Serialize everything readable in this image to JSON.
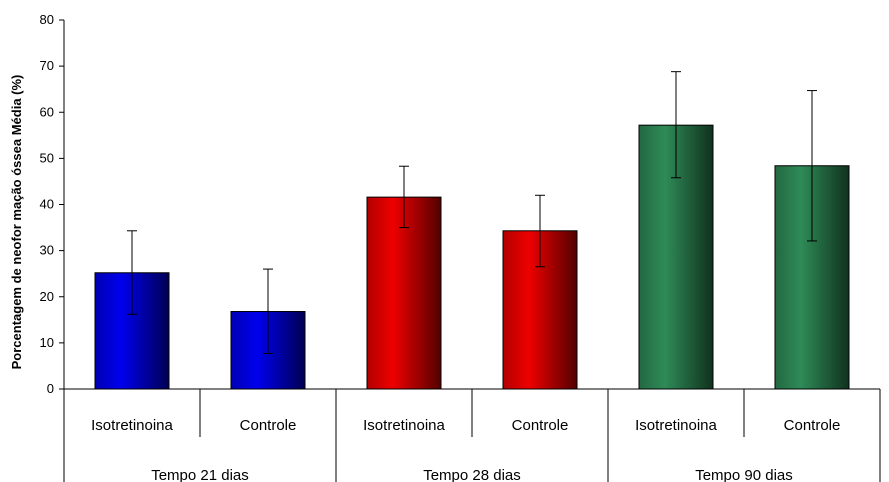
{
  "chart_data": {
    "type": "bar",
    "ylabel": "Porcentagem de neofor mação óssea Média (%)",
    "ylim": [
      0,
      80
    ],
    "yticks": [
      0,
      10,
      20,
      30,
      40,
      50,
      60,
      70,
      80
    ],
    "grid": false,
    "groups": [
      {
        "label": "Tempo 21 dias",
        "color": "#0000ee"
      },
      {
        "label": "Tempo 28 dias",
        "color": "#ee0000"
      },
      {
        "label": "Tempo 90 dias",
        "color": "#2e8b57"
      }
    ],
    "bars": [
      {
        "group": 0,
        "category": "Isotretinoina",
        "value": 25.2,
        "error_low": 16.2,
        "error_high": 34.3
      },
      {
        "group": 0,
        "category": "Controle",
        "value": 16.8,
        "error_low": 7.7,
        "error_high": 26.0
      },
      {
        "group": 1,
        "category": "Isotretinoina",
        "value": 41.6,
        "error_low": 35.0,
        "error_high": 48.3
      },
      {
        "group": 1,
        "category": "Controle",
        "value": 34.3,
        "error_low": 26.5,
        "error_high": 42.0
      },
      {
        "group": 2,
        "category": "Isotretinoina",
        "value": 57.2,
        "error_low": 45.8,
        "error_high": 68.8
      },
      {
        "group": 2,
        "category": "Controle",
        "value": 48.4,
        "error_low": 32.1,
        "error_high": 64.7
      }
    ]
  }
}
